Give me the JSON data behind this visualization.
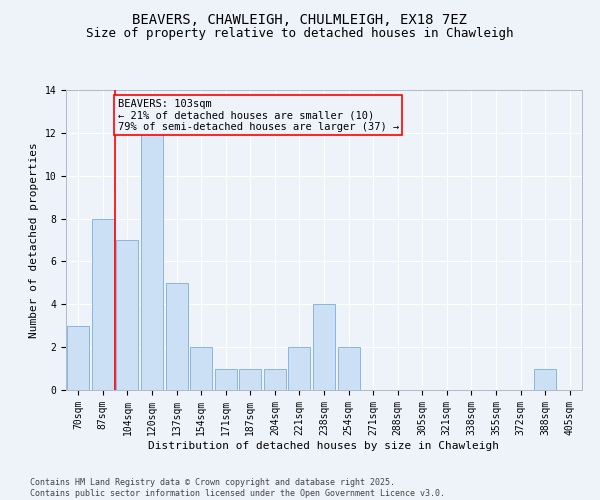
{
  "title": "BEAVERS, CHAWLEIGH, CHULMLEIGH, EX18 7EZ",
  "subtitle": "Size of property relative to detached houses in Chawleigh",
  "xlabel": "Distribution of detached houses by size in Chawleigh",
  "ylabel": "Number of detached properties",
  "categories": [
    "70sqm",
    "87sqm",
    "104sqm",
    "120sqm",
    "137sqm",
    "154sqm",
    "171sqm",
    "187sqm",
    "204sqm",
    "221sqm",
    "238sqm",
    "254sqm",
    "271sqm",
    "288sqm",
    "305sqm",
    "321sqm",
    "338sqm",
    "355sqm",
    "372sqm",
    "388sqm",
    "405sqm"
  ],
  "values": [
    3,
    8,
    7,
    12,
    5,
    2,
    1,
    1,
    1,
    2,
    4,
    2,
    0,
    0,
    0,
    0,
    0,
    0,
    0,
    1,
    0
  ],
  "bar_color": "#cce0f5",
  "bar_edge_color": "#7aaed6",
  "ylim": [
    0,
    14
  ],
  "yticks": [
    0,
    2,
    4,
    6,
    8,
    10,
    12,
    14
  ],
  "red_line_x": 1.5,
  "annotation_text": "BEAVERS: 103sqm\n← 21% of detached houses are smaller (10)\n79% of semi-detached houses are larger (37) →",
  "footer": "Contains HM Land Registry data © Crown copyright and database right 2025.\nContains public sector information licensed under the Open Government Licence v3.0.",
  "bg_color": "#eef2f9",
  "grid_color": "#ffffff",
  "title_fontsize": 10,
  "subtitle_fontsize": 9,
  "axis_label_fontsize": 8,
  "tick_fontsize": 7,
  "footer_fontsize": 6,
  "annotation_fontsize": 7.5
}
